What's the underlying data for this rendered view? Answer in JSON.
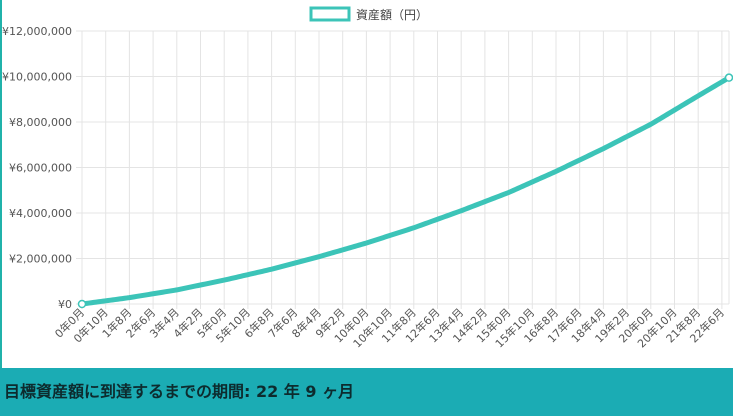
{
  "chart_data": {
    "type": "line",
    "legend": {
      "label": "資産額（円）",
      "position": "top-center"
    },
    "series": [
      {
        "name": "資産額（円）",
        "color": "#3cc4b8",
        "end_value": 9950000
      }
    ],
    "x_tick_labels": [
      "0年0月",
      "0年10月",
      "1年8月",
      "2年6月",
      "3年4月",
      "4年2月",
      "5年0月",
      "5年10月",
      "6年8月",
      "7年6月",
      "8年4月",
      "9年2月",
      "10年0月",
      "10年10月",
      "11年8月",
      "12年6月",
      "13年4月",
      "14年2月",
      "15年0月",
      "15年10月",
      "16年8月",
      "17年6月",
      "18年4月",
      "19年2月",
      "20年0月",
      "20年10月",
      "21年8月",
      "22年6月"
    ],
    "x_range_months": [
      0,
      273
    ],
    "x_tick_step_months": 10,
    "y_ticks": [
      "¥0",
      "¥2,000,000",
      "¥4,000,000",
      "¥6,000,000",
      "¥8,000,000",
      "¥10,000,000",
      "¥12,000,000"
    ],
    "ylim": [
      0,
      12000000
    ],
    "points_sampled": [
      {
        "month": 0,
        "value": 0
      },
      {
        "month": 20,
        "value": 280000
      },
      {
        "month": 40,
        "value": 620000
      },
      {
        "month": 60,
        "value": 1050000
      },
      {
        "month": 80,
        "value": 1530000
      },
      {
        "month": 100,
        "value": 2080000
      },
      {
        "month": 120,
        "value": 2680000
      },
      {
        "month": 140,
        "value": 3350000
      },
      {
        "month": 160,
        "value": 4100000
      },
      {
        "month": 180,
        "value": 4900000
      },
      {
        "month": 200,
        "value": 5830000
      },
      {
        "month": 220,
        "value": 6830000
      },
      {
        "month": 240,
        "value": 7900000
      },
      {
        "month": 260,
        "value": 9150000
      },
      {
        "month": 273,
        "value": 9950000
      }
    ],
    "grid": true
  },
  "footer": {
    "text": "目標資産額に到達するまでの期間: 22 年 9 ヶ月",
    "background": "#1bacb4"
  }
}
